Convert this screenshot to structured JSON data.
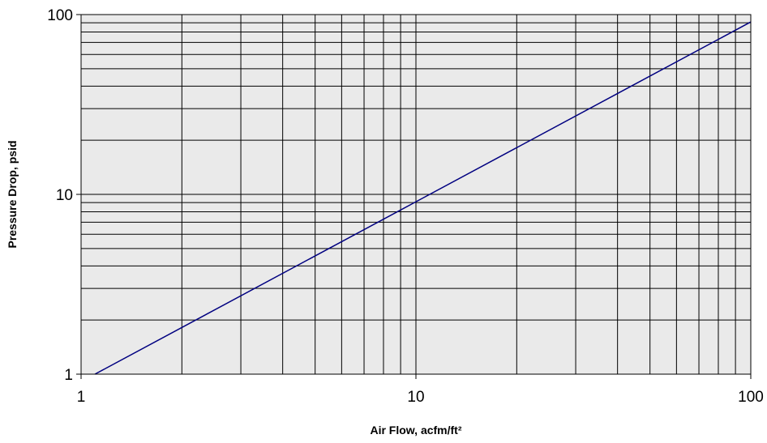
{
  "chart_data": {
    "type": "line",
    "title": "",
    "xlabel": "Air Flow, acfm/ft²",
    "ylabel": "Pressure Drop, psid",
    "x_scale": "log",
    "y_scale": "log",
    "xlim": [
      1,
      100
    ],
    "ylim": [
      1,
      100
    ],
    "x_ticks": [
      "1",
      "10",
      "100"
    ],
    "y_ticks": [
      "1",
      "10",
      "100"
    ],
    "grid": true,
    "legend": "none",
    "series": [
      {
        "x": [
          1.1,
          100
        ],
        "y": [
          1,
          91
        ],
        "color": "#000080"
      }
    ],
    "colors": {
      "plot_background": "#eaeaea",
      "grid": "#000000",
      "line": "#000080"
    }
  }
}
